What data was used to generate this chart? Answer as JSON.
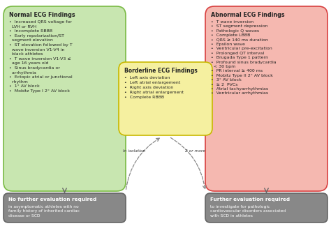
{
  "normal_title": "Normal ECG Findings",
  "normal_items": [
    "Increased QRS voltage for\n  LVH or RVH",
    "Incomplete RBBB",
    "Early repolarization/ST\n  segment elevation",
    "ST elevation followed by T\n  wave inversion V1-V4 in\n  black athletes",
    "T wave inversion V1-V3 ≤\n  age 16 years old",
    "Sinus bradycardia or\n  arrhythmia",
    "Ectopic atrial or junctional\n  rhythm",
    "1° AV block",
    "Mobitz Type I 2° AV block"
  ],
  "normal_bg": "#c8e6b0",
  "normal_border": "#7aba45",
  "borderline_title": "Borderline ECG Findings",
  "borderline_items": [
    "Left axis deviation",
    "Left atrial enlargement",
    "Right axis deviation",
    "Right atrial enlargement",
    "Complete RBBB"
  ],
  "borderline_bg": "#f5f0a0",
  "borderline_border": "#c8b800",
  "abnormal_title": "Abnormal ECG Findings",
  "abnormal_items": [
    "T wave inversion",
    "ST segment depression",
    "Pathologic Q waves",
    "Complete LBBB",
    "QRS ≥ 140 ms duration",
    "Epsilon wave",
    "Ventricular pre-excitation",
    "Prolonged QT interval",
    "Brugada Type 1 pattern",
    "Profound sinus bradycardia\n  < 30 bpm",
    "PR interval ≥ 400 ms",
    "Mobitz Type II 2° AV block",
    "3° AV block",
    "≥ 2  PVCs",
    "Atrial tachyarrhythmias",
    "Ventricular arrhythmias"
  ],
  "abnormal_bg": "#f5b8b0",
  "abnormal_border": "#d84040",
  "no_eval_title": "No further evaluation required",
  "no_eval_body": "in asymptomatic athletes with no\nfamily history of inherited cardiac\ndisease or SCD",
  "no_eval_bg": "#888888",
  "no_eval_border": "#666666",
  "further_eval_title": "Further evaluation required",
  "further_eval_body": "to investigate for pathologic\ncardiovascular disorders associated\nwith SCD in athletes",
  "further_eval_bg": "#888888",
  "further_eval_border": "#666666",
  "isolation_label": "In isolation",
  "two_or_more_label": "2 or more",
  "arrow_color": "#666666",
  "dotted_arrow_color": "#888888",
  "background_color": "#ffffff",
  "text_dark": "#222222",
  "text_white": "#ffffff"
}
